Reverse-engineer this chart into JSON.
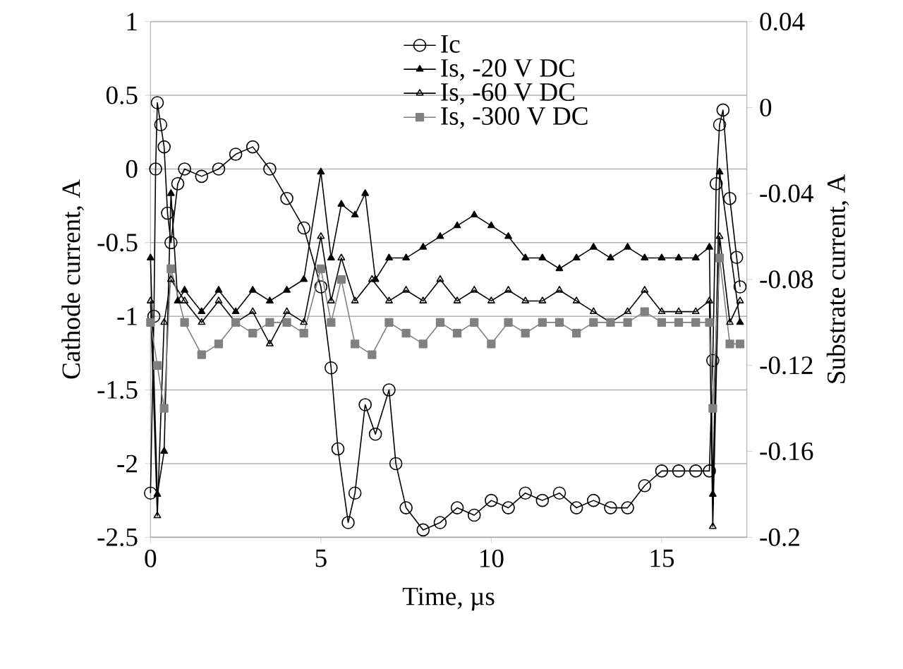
{
  "chart_data": {
    "type": "line",
    "xlabel": "Time, µs",
    "ylabel": "Cathode  current, A",
    "y2label": "Substrate  current, A",
    "xlim": [
      0,
      17.5
    ],
    "xticks": [
      0,
      5,
      10,
      15
    ],
    "ylim": [
      -2.5,
      1
    ],
    "yticks": [
      -2.5,
      -2,
      -1.5,
      -1,
      -0.5,
      0,
      0.5,
      1
    ],
    "y2lim": [
      -0.2,
      0.04
    ],
    "y2ticks": [
      -0.2,
      -0.16,
      -0.12,
      -0.08,
      -0.04,
      0,
      0.04
    ],
    "grid": "y",
    "legend": "top",
    "line_style": "solid",
    "series": [
      {
        "name": "Ic",
        "color": "#000000",
        "marker": "circle",
        "x": [
          0,
          0.1,
          0.15,
          0.2,
          0.3,
          0.4,
          0.5,
          0.6,
          0.8,
          1,
          1.5,
          2,
          2.5,
          3,
          3.5,
          4,
          4.5,
          5,
          5.3,
          5.5,
          5.8,
          6,
          6.3,
          6.6,
          7,
          7.2,
          7.5,
          8,
          8.5,
          9,
          9.5,
          10,
          10.5,
          11,
          11.5,
          12,
          12.5,
          13,
          13.5,
          14,
          14.5,
          15,
          15.5,
          16,
          16.4,
          16.5,
          16.6,
          16.7,
          16.8,
          17,
          17.2,
          17.3
        ],
        "values": [
          -2.2,
          -1,
          0,
          0.45,
          0.3,
          0.15,
          -0.3,
          -0.5,
          -0.1,
          0,
          -0.05,
          0,
          0.1,
          0.15,
          0,
          -0.2,
          -0.4,
          -0.8,
          -1.35,
          -1.9,
          -2.4,
          -2.2,
          -1.6,
          -1.8,
          -1.5,
          -2,
          -2.3,
          -2.45,
          -2.4,
          -2.3,
          -2.35,
          -2.25,
          -2.3,
          -2.2,
          -2.25,
          -2.2,
          -2.3,
          -2.25,
          -2.3,
          -2.3,
          -2.15,
          -2.05,
          -2.05,
          -2.05,
          -2.05,
          -1.3,
          -0.1,
          0.3,
          0.4,
          -0.2,
          -0.6,
          -0.8
        ]
      },
      {
        "name": "Is, -20 V DC",
        "color": "#000000",
        "marker": "triangle",
        "axis": "y2",
        "x": [
          0,
          0.2,
          0.4,
          0.6,
          0.8,
          1,
          1.5,
          2,
          2.5,
          3,
          3.5,
          4,
          4.5,
          5,
          5.3,
          5.6,
          6,
          6.3,
          6.6,
          7,
          7.5,
          8,
          8.5,
          9,
          9.5,
          10,
          10.5,
          11,
          11.5,
          12,
          12.5,
          13,
          13.5,
          14,
          14.5,
          15,
          15.5,
          16,
          16.4,
          16.5,
          16.7,
          17,
          17.3
        ],
        "values": [
          -0.07,
          -0.18,
          -0.16,
          -0.04,
          -0.09,
          -0.085,
          -0.095,
          -0.085,
          -0.095,
          -0.085,
          -0.09,
          -0.085,
          -0.08,
          -0.03,
          -0.07,
          -0.045,
          -0.05,
          -0.04,
          -0.08,
          -0.07,
          -0.07,
          -0.065,
          -0.06,
          -0.055,
          -0.05,
          -0.055,
          -0.06,
          -0.07,
          -0.07,
          -0.075,
          -0.07,
          -0.065,
          -0.07,
          -0.065,
          -0.07,
          -0.07,
          -0.07,
          -0.07,
          -0.065,
          -0.18,
          -0.03,
          null,
          -0.1
        ]
      },
      {
        "name": "Is, -60 V DC",
        "color": "#000000",
        "marker": "triangle open",
        "axis": "y2",
        "x": [
          0,
          0.2,
          0.4,
          0.6,
          1,
          1.5,
          2,
          2.5,
          3,
          3.5,
          4,
          4.5,
          5,
          5.3,
          5.6,
          6,
          6.5,
          7,
          7.5,
          8,
          8.5,
          9,
          9.5,
          10,
          10.5,
          11,
          11.5,
          12,
          12.5,
          13,
          13.5,
          14,
          14.5,
          15,
          15.5,
          16,
          16.4,
          16.5,
          16.7,
          17,
          17.3
        ],
        "values": [
          -0.09,
          -0.19,
          -0.1,
          -0.08,
          -0.09,
          -0.1,
          -0.09,
          -0.1,
          -0.095,
          -0.11,
          -0.095,
          -0.1,
          -0.06,
          -0.09,
          -0.07,
          -0.09,
          -0.08,
          -0.09,
          -0.085,
          -0.09,
          -0.08,
          -0.09,
          -0.085,
          -0.09,
          -0.085,
          -0.09,
          -0.09,
          -0.085,
          -0.09,
          -0.095,
          -0.1,
          -0.095,
          -0.085,
          -0.095,
          -0.095,
          -0.095,
          -0.09,
          -0.195,
          -0.06,
          -0.1,
          -0.09
        ]
      },
      {
        "name": "Is, -300 V DC",
        "color": "#808080",
        "marker": "square",
        "axis": "y2",
        "x": [
          0,
          0.2,
          0.4,
          0.6,
          1,
          1.5,
          2,
          2.5,
          3,
          3.5,
          4,
          4.5,
          5,
          5.3,
          5.6,
          6,
          6.5,
          7,
          7.5,
          8,
          8.5,
          9,
          9.5,
          10,
          10.5,
          11,
          11.5,
          12,
          12.5,
          13,
          13.5,
          14,
          14.5,
          15,
          15.5,
          16,
          16.4,
          16.5,
          16.7,
          17,
          17.3
        ],
        "values": [
          -0.1,
          -0.12,
          -0.14,
          -0.075,
          -0.1,
          -0.115,
          -0.11,
          -0.1,
          -0.105,
          -0.1,
          -0.1,
          -0.105,
          -0.075,
          -0.1,
          -0.08,
          -0.11,
          -0.115,
          -0.1,
          -0.105,
          -0.11,
          -0.1,
          -0.105,
          -0.1,
          -0.11,
          -0.1,
          -0.105,
          -0.1,
          -0.1,
          -0.105,
          -0.1,
          -0.1,
          -0.1,
          -0.095,
          -0.1,
          -0.1,
          -0.1,
          -0.1,
          -0.14,
          -0.07,
          -0.11,
          -0.11
        ]
      }
    ]
  }
}
